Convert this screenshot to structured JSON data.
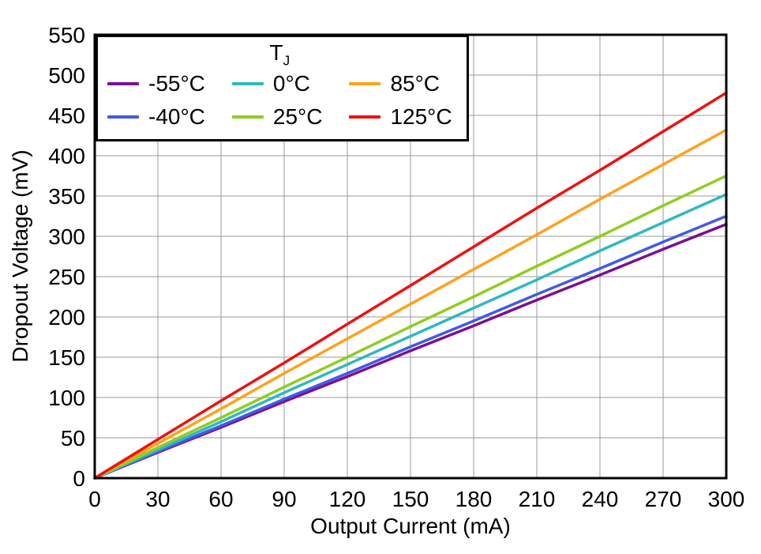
{
  "chart_data": {
    "type": "line",
    "title": "",
    "xlabel": "Output Current (mA)",
    "ylabel": "Dropout Voltage (mV)",
    "xlim": [
      0,
      300
    ],
    "ylim": [
      0,
      550
    ],
    "xticks": [
      0,
      30,
      60,
      90,
      120,
      150,
      180,
      210,
      240,
      270,
      300
    ],
    "yticks": [
      0,
      50,
      100,
      150,
      200,
      250,
      300,
      350,
      400,
      450,
      500,
      550
    ],
    "grid": true,
    "grid_color": "#999999",
    "frame_color": "#000000",
    "legend": {
      "title_main": "T",
      "title_sub": "J",
      "position": "top-left"
    },
    "x": [
      0,
      30,
      60,
      90,
      120,
      150,
      180,
      210,
      240,
      270,
      300
    ],
    "series": [
      {
        "name": "-55°C",
        "color": "#7D0E94",
        "values": [
          0,
          32,
          63,
          95,
          126,
          158,
          189,
          221,
          252,
          284,
          315
        ]
      },
      {
        "name": "-40°C",
        "color": "#3F5BE5",
        "values": [
          0,
          33,
          65,
          98,
          130,
          163,
          195,
          228,
          260,
          293,
          325
        ]
      },
      {
        "name": "0°C",
        "color": "#2FB8C0",
        "values": [
          0,
          35,
          70,
          106,
          141,
          176,
          211,
          246,
          282,
          317,
          352
        ]
      },
      {
        "name": "25°C",
        "color": "#8FCE20",
        "values": [
          0,
          38,
          75,
          113,
          150,
          188,
          225,
          263,
          300,
          338,
          375
        ]
      },
      {
        "name": "85°C",
        "color": "#FFA21A",
        "values": [
          0,
          43,
          86,
          130,
          173,
          216,
          259,
          302,
          346,
          389,
          432
        ]
      },
      {
        "name": "125°C",
        "color": "#F01011",
        "values": [
          0,
          48,
          96,
          143,
          191,
          239,
          287,
          335,
          382,
          430,
          478
        ]
      }
    ]
  }
}
